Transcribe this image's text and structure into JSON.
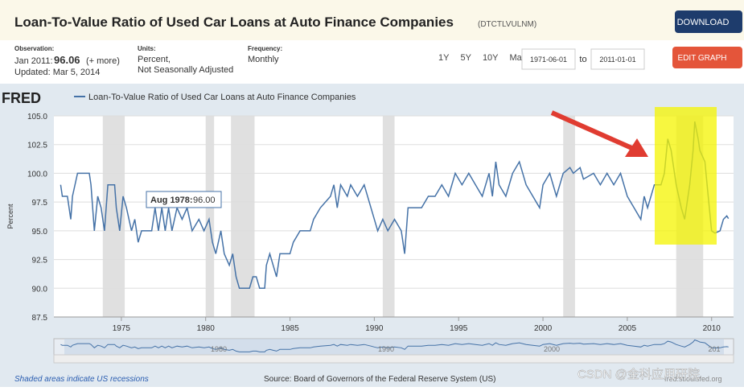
{
  "header": {
    "title": "Loan-To-Value Ratio of Used Car Loans at Auto Finance Companies",
    "code": "(DTCTLVULNM)",
    "download": "DOWNLOAD",
    "edit": "EDIT GRAPH"
  },
  "info": {
    "obs_label": "Observation:",
    "obs_date": "Jan 2011:",
    "obs_value": "96.06",
    "obs_more": "(+ more)",
    "updated": "Updated: Mar 5, 2014",
    "units_label": "Units:",
    "units_1": "Percent,",
    "units_2": "Not Seasonally Adjusted",
    "freq_label": "Frequency:",
    "freq": "Monthly"
  },
  "range": {
    "buttons": [
      "1Y",
      "5Y",
      "10Y",
      "Max"
    ],
    "from": "1971-06-01",
    "to_label": "to",
    "to": "2011-01-01"
  },
  "logo": "FRED",
  "chart_data": {
    "type": "line",
    "ylabel": "Percent",
    "tooltip": "Aug 1978:",
    "tooltip_value": "96.00",
    "series": [
      {
        "name": "Loan-To-Value Ratio of Used Car Loans at Auto Finance Companies",
        "color": "#4572a7",
        "x": [
          1971.4,
          1971.5,
          1971.8,
          1972.0,
          1972.1,
          1972.4,
          1973.1,
          1973.2,
          1973.4,
          1973.6,
          1973.8,
          1974.0,
          1974.2,
          1974.6,
          1974.7,
          1974.9,
          1975.1,
          1975.3,
          1975.6,
          1975.8,
          1976.0,
          1976.2,
          1976.8,
          1977.0,
          1977.2,
          1977.4,
          1977.6,
          1977.8,
          1978.0,
          1978.3,
          1978.6,
          1978.9,
          1979.2,
          1979.6,
          1979.9,
          1980.2,
          1980.4,
          1980.6,
          1980.9,
          1981.1,
          1981.4,
          1981.6,
          1981.8,
          1982.0,
          1982.6,
          1982.8,
          1983.0,
          1983.2,
          1983.5,
          1983.6,
          1983.8,
          1984.0,
          1984.2,
          1984.4,
          1985.0,
          1985.2,
          1985.6,
          1986.2,
          1986.4,
          1986.8,
          1987.4,
          1987.6,
          1987.8,
          1988.0,
          1988.4,
          1988.6,
          1989.0,
          1989.4,
          1989.8,
          1990.0,
          1990.2,
          1990.5,
          1990.8,
          1991.2,
          1991.6,
          1991.8,
          1992.0,
          1992.8,
          1993.2,
          1993.6,
          1994.0,
          1994.4,
          1994.8,
          1995.2,
          1995.6,
          1996.0,
          1996.4,
          1996.8,
          1997.0,
          1997.2,
          1997.4,
          1997.8,
          1998.2,
          1998.6,
          1999.0,
          1999.4,
          1999.8,
          2000.0,
          2000.4,
          2000.8,
          2001.2,
          2001.6,
          2001.8,
          2002.2,
          2002.4,
          2003.0,
          2003.4,
          2003.8,
          2004.2,
          2004.6,
          2005.0,
          2005.4,
          2005.8,
          2006.0,
          2006.2,
          2006.6,
          2007.0,
          2007.2,
          2007.4,
          2007.6,
          2007.9,
          2008.2,
          2008.4,
          2008.7,
          2008.9,
          2009.0,
          2009.2,
          2009.3,
          2009.6,
          2009.8,
          2010.0,
          2010.2,
          2010.5,
          2010.7,
          2010.9,
          2011.0
        ],
        "values": [
          99,
          98,
          98,
          96,
          98,
          100,
          100,
          99,
          95,
          98,
          97,
          95,
          99,
          99,
          97,
          95,
          98,
          97,
          95,
          96,
          94,
          95,
          95,
          97,
          95,
          97,
          95,
          97,
          95,
          97,
          96,
          97,
          95,
          96,
          95,
          96,
          94,
          93,
          95,
          93,
          92,
          93,
          91,
          90,
          90,
          91,
          91,
          90,
          90,
          92,
          93,
          92,
          91,
          93,
          93,
          94,
          95,
          95,
          96,
          97,
          98,
          99,
          97,
          99,
          98,
          99,
          98,
          99,
          97,
          96,
          95,
          96,
          95,
          96,
          95,
          93,
          97,
          97,
          98,
          98,
          99,
          98,
          100,
          99,
          100,
          99,
          98,
          100,
          98,
          101,
          99,
          98,
          100,
          101,
          99,
          98,
          97,
          99,
          100,
          98,
          100,
          100.5,
          100,
          100.5,
          99.5,
          100,
          99,
          100,
          99,
          100,
          98,
          97,
          96,
          98,
          97,
          99,
          99,
          100,
          103,
          102,
          99,
          97,
          96,
          99,
          102,
          104.5,
          103,
          102,
          101,
          98,
          95,
          94.8,
          95,
          96,
          96.3,
          96.06
        ]
      }
    ],
    "xlim": [
      1971.0,
      2011.3
    ],
    "xticks": [
      1975,
      1980,
      1985,
      1990,
      1995,
      2000,
      2005,
      2010
    ],
    "ylim": [
      87.5,
      105
    ],
    "yticks": [
      87.5,
      {
        "value": 90,
        "label": "90.0"
      },
      92.5,
      {
        "value": 95,
        "label": "95.0"
      },
      97.5,
      {
        "value": 100,
        "label": "100.0"
      },
      102.5,
      {
        "value": 105,
        "label": "105.0"
      }
    ],
    "grid": true,
    "recessions": [
      [
        1973.9,
        1975.2
      ],
      [
        1980.0,
        1980.5
      ],
      [
        1981.5,
        1982.9
      ],
      [
        1990.5,
        1991.2
      ],
      [
        2001.2,
        2001.9
      ],
      [
        2007.9,
        2009.5
      ]
    ]
  },
  "navigator": {
    "labels": [
      "1980",
      "1990",
      "2000",
      "201"
    ]
  },
  "footer": {
    "note": "Shaded areas indicate US recessions",
    "source": "Source: Board of Governors of the Federal Reserve System (US)",
    "site": "fred.stlouisfed.org",
    "watermark": "CSDN @金科应用研院"
  }
}
